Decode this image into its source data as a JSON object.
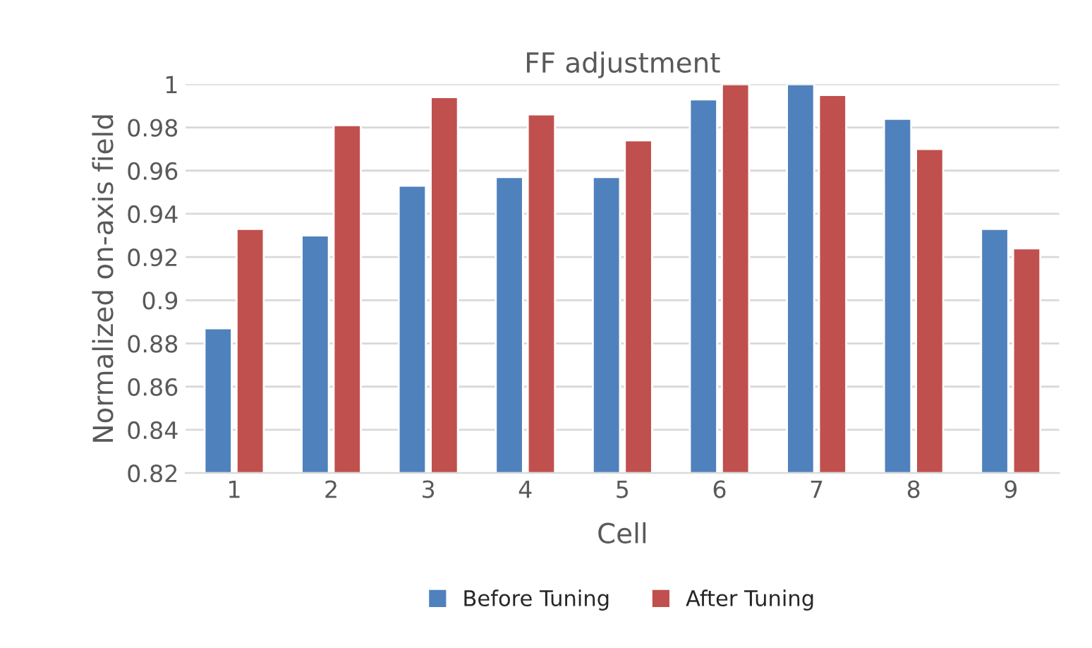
{
  "chart_data": {
    "type": "bar",
    "title": "FF adjustment",
    "xlabel": "Cell",
    "ylabel": "Normalized on-axis field",
    "categories": [
      "1",
      "2",
      "3",
      "4",
      "5",
      "6",
      "7",
      "8",
      "9"
    ],
    "series": [
      {
        "name": "Before Tuning",
        "color": "#4f81bd",
        "values": [
          0.887,
          0.93,
          0.953,
          0.957,
          0.957,
          0.993,
          1.0,
          0.984,
          0.933
        ]
      },
      {
        "name": "After Tuning",
        "color": "#c0504d",
        "values": [
          0.933,
          0.981,
          0.994,
          0.986,
          0.974,
          1.0,
          0.995,
          0.97,
          0.924
        ]
      }
    ],
    "ylim": [
      0.82,
      1
    ],
    "yticks": [
      0.82,
      0.84,
      0.86,
      0.88,
      0.9,
      0.92,
      0.94,
      0.96,
      0.98,
      1
    ],
    "grid": "y",
    "legend": "bottom"
  }
}
